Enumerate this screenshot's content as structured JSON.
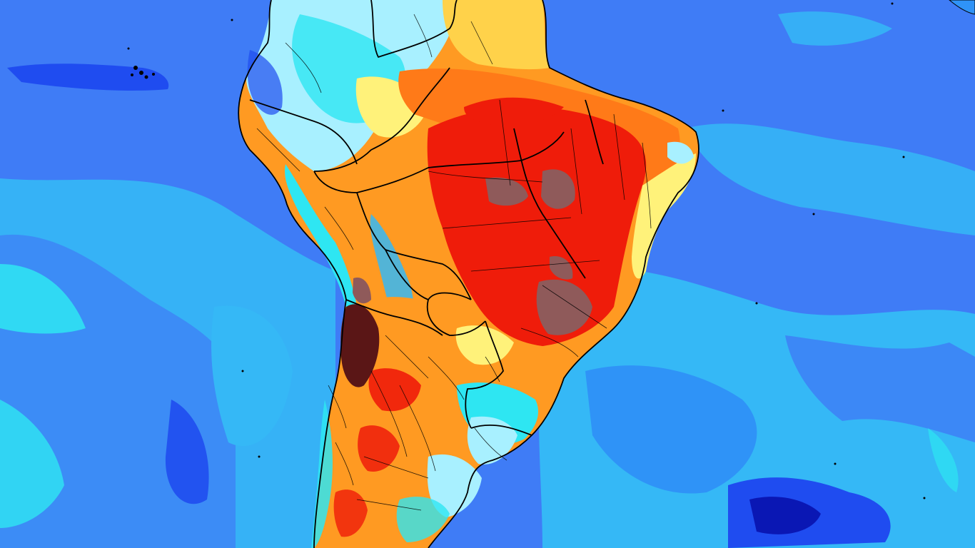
{
  "map": {
    "kind": "temperature-anomaly-forecast",
    "region": "South America",
    "printed_text": [],
    "colors": {
      "ocean_deep": "#3f7cf6",
      "ocean_mid": "#2f93f7",
      "ocean_light": "#35b8f6",
      "cold_cyan": "#2ee6f2",
      "cool_pale": "#a8f0ff",
      "neutral_yellow": "#fff27a",
      "warm_orange": "#ff9a22",
      "hot_red": "#ef1c0a",
      "extreme_gray": "#8f5a5a",
      "extreme_maroon": "#5a1616",
      "very_cold_blue": "#1f4cf0",
      "coldest_navy": "#0a17b4",
      "borders": "#000000"
    }
  }
}
